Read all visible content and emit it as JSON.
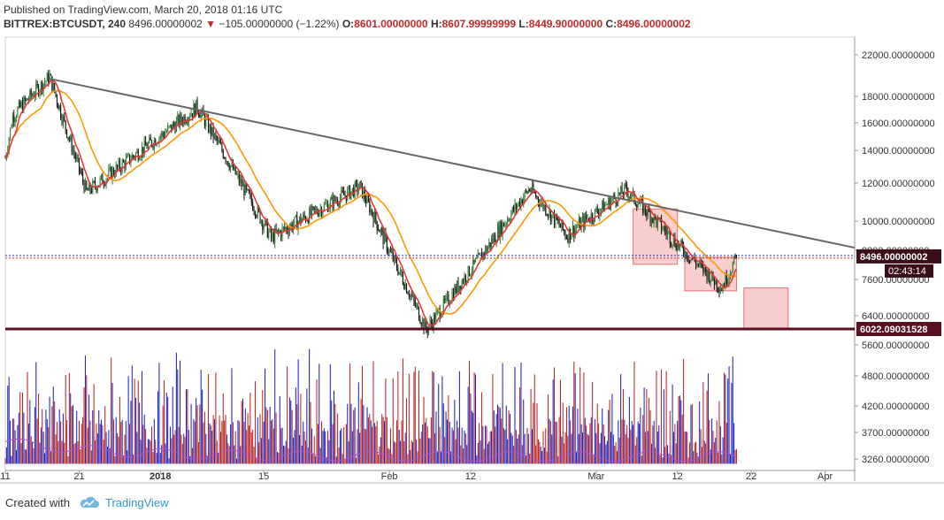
{
  "header": {
    "published": "Published on TradingView.com, March 20, 2018 01:16 UTC",
    "symbol": "BITTREX:BTCUSDT, 240",
    "last": "8496.00000002",
    "change": "−105.00000000 (−1.22%)",
    "o_label": "O:",
    "o_value": "8601.00000000",
    "h_label": "H:",
    "h_value": "8607.99999999",
    "l_label": "L:",
    "l_value": "8449.90000000",
    "c_label": "C:",
    "c_value": "8496.00000002"
  },
  "price_axis": {
    "ticks": [
      {
        "label": "22000.00000000",
        "value": 22000
      },
      {
        "label": "18000.00000000",
        "value": 18000
      },
      {
        "label": "16000.00000000",
        "value": 16000
      },
      {
        "label": "14000.00000000",
        "value": 14000
      },
      {
        "label": "12000.00000000",
        "value": 12000
      },
      {
        "label": "10000.00000000",
        "value": 10000
      },
      {
        "label": "8800.00000000",
        "value": 8800
      },
      {
        "label": "7600.00000000",
        "value": 7600
      },
      {
        "label": "6400.00000000",
        "value": 6400
      }
    ],
    "current_label": "8496.00000002",
    "countdown": "02:43:14",
    "support_label": "6022.09031528"
  },
  "volume_axis": {
    "ticks": [
      {
        "label": "5600.00000000",
        "value": 5600
      },
      {
        "label": "4800.00000000",
        "value": 4800
      },
      {
        "label": "4200.00000000",
        "value": 4200
      },
      {
        "label": "3700.00000000",
        "value": 3700
      },
      {
        "label": "3260.00000000",
        "value": 3260
      }
    ]
  },
  "x_axis": {
    "ticks": [
      {
        "label": "11",
        "date": "2017-12-11"
      },
      {
        "label": "21",
        "date": "2017-12-21"
      },
      {
        "label": "2018",
        "date": "2018-01-01"
      },
      {
        "label": "15",
        "date": "2018-01-15"
      },
      {
        "label": "Feb",
        "date": "2018-02-01"
      },
      {
        "label": "12",
        "date": "2018-02-12"
      },
      {
        "label": "Mar",
        "date": "2018-03-01"
      },
      {
        "label": "12",
        "date": "2018-03-12"
      },
      {
        "label": "22",
        "date": "2018-03-22"
      },
      {
        "label": "Apr",
        "date": "2018-04-01"
      }
    ]
  },
  "chart_data": {
    "type": "candlestick",
    "symbol": "BITTREX:BTCUSDT",
    "interval": "240",
    "ylim": [
      5600,
      23000
    ],
    "xlim": [
      "2017-12-11",
      "2018-04-05"
    ],
    "key_points": [
      {
        "date": "2017-12-17",
        "price": 19800
      },
      {
        "date": "2017-12-22",
        "price": 11500
      },
      {
        "date": "2018-01-06",
        "price": 17200
      },
      {
        "date": "2018-01-16",
        "price": 9300
      },
      {
        "date": "2018-01-28",
        "price": 11800
      },
      {
        "date": "2018-02-06",
        "price": 6000
      },
      {
        "date": "2018-02-20",
        "price": 11700
      },
      {
        "date": "2018-02-25",
        "price": 9400
      },
      {
        "date": "2018-03-05",
        "price": 11600
      },
      {
        "date": "2018-03-18",
        "price": 7300
      },
      {
        "date": "2018-03-20",
        "price": 8496
      }
    ],
    "trendline": [
      {
        "date": "2017-12-17",
        "price": 19600
      },
      {
        "date": "2018-04-05",
        "price": 8900
      }
    ],
    "support": {
      "price": 6022.09031528
    },
    "current_price": 8496.00000002,
    "boxes": [
      {
        "from": "2018-03-06",
        "to": "2018-03-12",
        "low": 8200,
        "high": 10600
      },
      {
        "from": "2018-03-13",
        "to": "2018-03-20",
        "low": 7200,
        "high": 8500
      },
      {
        "from": "2018-03-21",
        "to": "2018-03-27",
        "low": 6022,
        "high": 7300
      }
    ],
    "colors": {
      "up": "#2e7d32",
      "down": "#111111",
      "ma_fast": "#e53935",
      "ma_slow": "#ff9800",
      "trendline": "#666666",
      "support": "#5b1020",
      "box": "#f4a6a6",
      "vol_up": "#1a1ab8",
      "vol_down": "#b71c1c",
      "vol_ma": "#b04fd0",
      "current": "#3030c0"
    }
  },
  "footer": {
    "created": "Created with",
    "brand": "TradingView"
  }
}
